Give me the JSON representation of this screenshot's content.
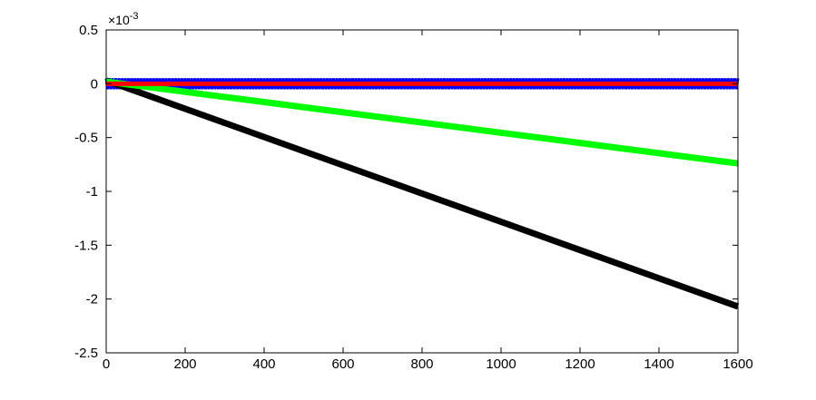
{
  "chart_data": {
    "type": "line",
    "title": "",
    "xlabel": "",
    "ylabel": "",
    "xlim": [
      0,
      1600
    ],
    "ylim": [
      -2.5,
      0.5
    ],
    "y_scale_exponent_label": "×10",
    "y_scale_exponent": "-3",
    "x_ticks": [
      0,
      200,
      400,
      600,
      800,
      1000,
      1200,
      1400,
      1600
    ],
    "x_tick_labels": [
      "0",
      "200",
      "400",
      "600",
      "800",
      "1000",
      "1200",
      "1400",
      "1600"
    ],
    "y_ticks": [
      0.5,
      0,
      -0.5,
      -1,
      -1.5,
      -2,
      -2.5
    ],
    "y_tick_labels": [
      "0.5",
      "0",
      "-0.5",
      "-1",
      "-1.5",
      "-2",
      "-2.5"
    ],
    "grid": false,
    "legend": "none",
    "series": [
      {
        "color": "#0000ff",
        "style": "oscillating band",
        "x": [
          0,
          1600
        ],
        "upper": [
          0.05,
          0.05
        ],
        "lower": [
          -0.05,
          -0.05
        ]
      },
      {
        "color": "#ff0000",
        "style": "thick line",
        "x": [
          0,
          1600
        ],
        "values": [
          0,
          0
        ]
      },
      {
        "color": "#00ff00",
        "style": "thick line",
        "x": [
          0,
          1600
        ],
        "values": [
          0.02,
          -0.74
        ]
      },
      {
        "color": "#000000",
        "style": "thick line",
        "x": [
          0,
          1600
        ],
        "values": [
          0.03,
          -2.07
        ]
      }
    ]
  }
}
